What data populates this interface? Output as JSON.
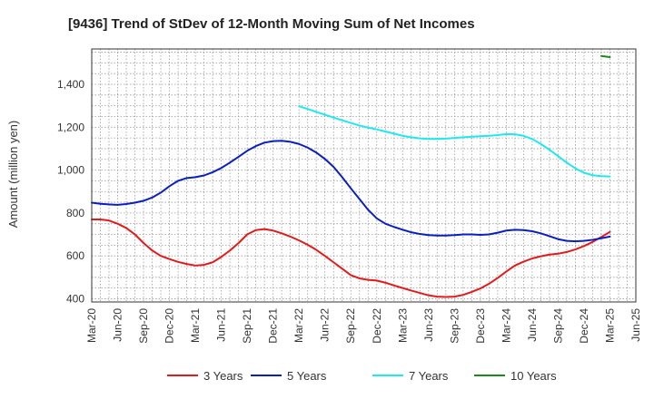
{
  "chart_data": {
    "type": "line",
    "title": "[9436]  Trend of StDev of 12-Month Moving Sum of Net Incomes",
    "ylabel": "Amount (million yen)",
    "xlabel": "",
    "ylim": [
      385,
      1565
    ],
    "yticks": [
      400,
      600,
      800,
      1000,
      1200,
      1400
    ],
    "ytick_labels": [
      "400",
      "600",
      "800",
      "1,000",
      "1,200",
      "1,400"
    ],
    "x_start": "2020-03",
    "x_end": "2025-06",
    "x_tick_labels": [
      "Mar-20",
      "Jun-20",
      "Sep-20",
      "Dec-20",
      "Mar-21",
      "Jun-21",
      "Sep-21",
      "Dec-21",
      "Mar-22",
      "Jun-22",
      "Sep-22",
      "Dec-22",
      "Mar-23",
      "Jun-23",
      "Sep-23",
      "Dec-23",
      "Mar-24",
      "Jun-24",
      "Sep-24",
      "Dec-24",
      "Mar-25",
      "Jun-25"
    ],
    "grid": true,
    "legend_position": "bottom",
    "series": [
      {
        "name": "3 Years",
        "color": "#e31a1c",
        "points": [
          [
            "2020-03",
            770
          ],
          [
            "2020-04",
            770
          ],
          [
            "2020-05",
            765
          ],
          [
            "2020-06",
            750
          ],
          [
            "2020-07",
            730
          ],
          [
            "2020-08",
            700
          ],
          [
            "2020-09",
            660
          ],
          [
            "2020-10",
            625
          ],
          [
            "2020-11",
            600
          ],
          [
            "2020-12",
            585
          ],
          [
            "2021-01",
            572
          ],
          [
            "2021-02",
            562
          ],
          [
            "2021-03",
            555
          ],
          [
            "2021-04",
            558
          ],
          [
            "2021-05",
            570
          ],
          [
            "2021-06",
            595
          ],
          [
            "2021-07",
            625
          ],
          [
            "2021-08",
            660
          ],
          [
            "2021-09",
            700
          ],
          [
            "2021-10",
            720
          ],
          [
            "2021-11",
            725
          ],
          [
            "2021-12",
            718
          ],
          [
            "2022-01",
            705
          ],
          [
            "2022-02",
            690
          ],
          [
            "2022-03",
            672
          ],
          [
            "2022-04",
            652
          ],
          [
            "2022-05",
            628
          ],
          [
            "2022-06",
            600
          ],
          [
            "2022-07",
            570
          ],
          [
            "2022-08",
            540
          ],
          [
            "2022-09",
            510
          ],
          [
            "2022-10",
            495
          ],
          [
            "2022-11",
            488
          ],
          [
            "2022-12",
            485
          ],
          [
            "2023-01",
            475
          ],
          [
            "2023-02",
            462
          ],
          [
            "2023-03",
            450
          ],
          [
            "2023-04",
            438
          ],
          [
            "2023-05",
            427
          ],
          [
            "2023-06",
            416
          ],
          [
            "2023-07",
            410
          ],
          [
            "2023-08",
            408
          ],
          [
            "2023-09",
            410
          ],
          [
            "2023-10",
            418
          ],
          [
            "2023-11",
            432
          ],
          [
            "2023-12",
            448
          ],
          [
            "2024-01",
            470
          ],
          [
            "2024-02",
            497
          ],
          [
            "2024-03",
            527
          ],
          [
            "2024-04",
            555
          ],
          [
            "2024-05",
            573
          ],
          [
            "2024-06",
            588
          ],
          [
            "2024-07",
            598
          ],
          [
            "2024-08",
            606
          ],
          [
            "2024-09",
            610
          ],
          [
            "2024-10",
            618
          ],
          [
            "2024-11",
            630
          ],
          [
            "2024-12",
            646
          ],
          [
            "2025-01",
            665
          ],
          [
            "2025-02",
            688
          ],
          [
            "2025-03",
            712
          ]
        ]
      },
      {
        "name": "5 Years",
        "color": "#0a1fc2",
        "points": [
          [
            "2020-03",
            848
          ],
          [
            "2020-04",
            843
          ],
          [
            "2020-05",
            840
          ],
          [
            "2020-06",
            838
          ],
          [
            "2020-07",
            842
          ],
          [
            "2020-08",
            848
          ],
          [
            "2020-09",
            857
          ],
          [
            "2020-10",
            872
          ],
          [
            "2020-11",
            895
          ],
          [
            "2020-12",
            925
          ],
          [
            "2021-01",
            950
          ],
          [
            "2021-02",
            963
          ],
          [
            "2021-03",
            967
          ],
          [
            "2021-04",
            975
          ],
          [
            "2021-05",
            990
          ],
          [
            "2021-06",
            1010
          ],
          [
            "2021-07",
            1035
          ],
          [
            "2021-08",
            1062
          ],
          [
            "2021-09",
            1090
          ],
          [
            "2021-10",
            1112
          ],
          [
            "2021-11",
            1128
          ],
          [
            "2021-12",
            1135
          ],
          [
            "2022-01",
            1137
          ],
          [
            "2022-02",
            1132
          ],
          [
            "2022-03",
            1122
          ],
          [
            "2022-04",
            1105
          ],
          [
            "2022-05",
            1082
          ],
          [
            "2022-06",
            1052
          ],
          [
            "2022-07",
            1015
          ],
          [
            "2022-08",
            967
          ],
          [
            "2022-09",
            915
          ],
          [
            "2022-10",
            865
          ],
          [
            "2022-11",
            815
          ],
          [
            "2022-12",
            775
          ],
          [
            "2023-01",
            750
          ],
          [
            "2023-02",
            735
          ],
          [
            "2023-03",
            722
          ],
          [
            "2023-04",
            710
          ],
          [
            "2023-05",
            702
          ],
          [
            "2023-06",
            697
          ],
          [
            "2023-07",
            695
          ],
          [
            "2023-08",
            695
          ],
          [
            "2023-09",
            697
          ],
          [
            "2023-10",
            700
          ],
          [
            "2023-11",
            700
          ],
          [
            "2023-12",
            698
          ],
          [
            "2024-01",
            700
          ],
          [
            "2024-02",
            708
          ],
          [
            "2024-03",
            718
          ],
          [
            "2024-04",
            722
          ],
          [
            "2024-05",
            720
          ],
          [
            "2024-06",
            715
          ],
          [
            "2024-07",
            705
          ],
          [
            "2024-08",
            692
          ],
          [
            "2024-09",
            678
          ],
          [
            "2024-10",
            670
          ],
          [
            "2024-11",
            668
          ],
          [
            "2024-12",
            670
          ],
          [
            "2025-01",
            675
          ],
          [
            "2025-02",
            682
          ],
          [
            "2025-03",
            690
          ]
        ]
      },
      {
        "name": "7 Years",
        "color": "#1ee8f0",
        "points": [
          [
            "2022-03",
            1298
          ],
          [
            "2022-04",
            1285
          ],
          [
            "2022-05",
            1272
          ],
          [
            "2022-06",
            1258
          ],
          [
            "2022-07",
            1245
          ],
          [
            "2022-08",
            1232
          ],
          [
            "2022-09",
            1220
          ],
          [
            "2022-10",
            1208
          ],
          [
            "2022-11",
            1198
          ],
          [
            "2022-12",
            1190
          ],
          [
            "2023-01",
            1180
          ],
          [
            "2023-02",
            1170
          ],
          [
            "2023-03",
            1160
          ],
          [
            "2023-04",
            1153
          ],
          [
            "2023-05",
            1148
          ],
          [
            "2023-06",
            1145
          ],
          [
            "2023-07",
            1145
          ],
          [
            "2023-08",
            1147
          ],
          [
            "2023-09",
            1150
          ],
          [
            "2023-10",
            1153
          ],
          [
            "2023-11",
            1156
          ],
          [
            "2023-12",
            1158
          ],
          [
            "2024-01",
            1160
          ],
          [
            "2024-02",
            1163
          ],
          [
            "2024-03",
            1168
          ],
          [
            "2024-04",
            1167
          ],
          [
            "2024-05",
            1160
          ],
          [
            "2024-06",
            1145
          ],
          [
            "2024-07",
            1122
          ],
          [
            "2024-08",
            1095
          ],
          [
            "2024-09",
            1065
          ],
          [
            "2024-10",
            1035
          ],
          [
            "2024-11",
            1008
          ],
          [
            "2024-12",
            988
          ],
          [
            "2025-01",
            976
          ],
          [
            "2025-02",
            972
          ],
          [
            "2025-03",
            970
          ]
        ]
      },
      {
        "name": "10 Years",
        "color": "#1a8a1a",
        "points": [
          [
            "2025-02",
            1532
          ],
          [
            "2025-03",
            1527
          ]
        ]
      }
    ]
  }
}
